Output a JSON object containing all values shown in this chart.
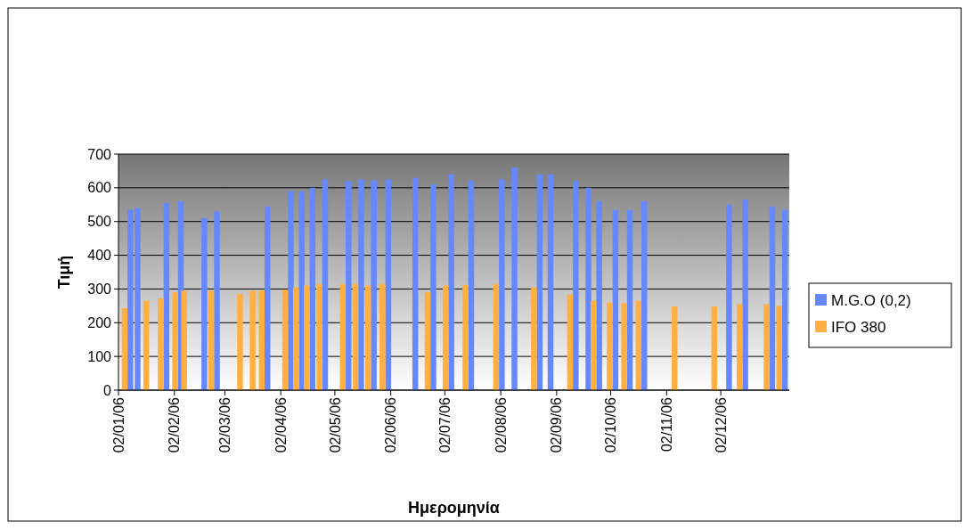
{
  "chart_data": {
    "type": "bar",
    "xlabel": "Ημερομηνία",
    "ylabel": "Τιμή",
    "x": [
      "2006-01-07",
      "2006-01-11",
      "2006-01-19",
      "2006-01-27",
      "2006-02-04",
      "2006-02-09",
      "2006-02-17",
      "2006-02-24",
      "2006-03-12",
      "2006-03-19",
      "2006-03-24",
      "2006-04-06",
      "2006-04-12",
      "2006-04-18",
      "2006-04-25",
      "2006-05-08",
      "2006-05-15",
      "2006-05-22",
      "2006-05-30",
      "2006-06-14",
      "2006-06-24",
      "2006-07-04",
      "2006-07-15",
      "2006-08-01",
      "2006-08-08",
      "2006-08-22",
      "2006-08-28",
      "2006-09-11",
      "2006-09-18",
      "2006-09-24",
      "2006-10-03",
      "2006-10-11",
      "2006-10-19",
      "2006-11-08",
      "2006-11-30",
      "2006-12-05",
      "2006-12-14",
      "2006-12-29",
      "2007-01-05"
    ],
    "series": [
      {
        "name": "M.G.O (0,2)",
        "color": "#6688ff",
        "values": [
          535,
          540,
          null,
          555,
          560,
          null,
          510,
          530,
          null,
          null,
          545,
          590,
          590,
          600,
          625,
          620,
          625,
          622,
          625,
          630,
          610,
          640,
          622,
          625,
          660,
          640,
          640,
          620,
          600,
          560,
          535,
          535,
          560,
          null,
          null,
          550,
          565,
          545,
          535
        ]
      },
      {
        "name": "IFO 380",
        "color": "#ffb040",
        "values": [
          243,
          null,
          265,
          272,
          290,
          295,
          null,
          295,
          285,
          295,
          295,
          298,
          305,
          310,
          315,
          315,
          315,
          310,
          315,
          null,
          290,
          310,
          312,
          315,
          null,
          305,
          null,
          283,
          null,
          265,
          260,
          258,
          265,
          248,
          248,
          null,
          255,
          255,
          250
        ]
      }
    ],
    "xlim": [
      "2006-01-02",
      "2007-01-09"
    ],
    "xticks": [
      {
        "value": "2006-01-02",
        "label": "02/01/06"
      },
      {
        "value": "2006-02-02",
        "label": "02/02/06"
      },
      {
        "value": "2006-03-02",
        "label": "02/03/06"
      },
      {
        "value": "2006-04-02",
        "label": "02/04/06"
      },
      {
        "value": "2006-05-02",
        "label": "02/05/06"
      },
      {
        "value": "2006-06-02",
        "label": "02/06/06"
      },
      {
        "value": "2006-07-02",
        "label": "02/07/06"
      },
      {
        "value": "2006-08-02",
        "label": "02/08/06"
      },
      {
        "value": "2006-09-02",
        "label": "02/09/06"
      },
      {
        "value": "2006-10-02",
        "label": "02/10/06"
      },
      {
        "value": "2006-11-02",
        "label": "02/11/06"
      },
      {
        "value": "2006-12-02",
        "label": "02/12/06"
      }
    ],
    "ylim": [
      0,
      700
    ],
    "yticks": [
      0,
      100,
      200,
      300,
      400,
      500,
      600,
      700
    ],
    "grid": "y",
    "legend": "right"
  }
}
